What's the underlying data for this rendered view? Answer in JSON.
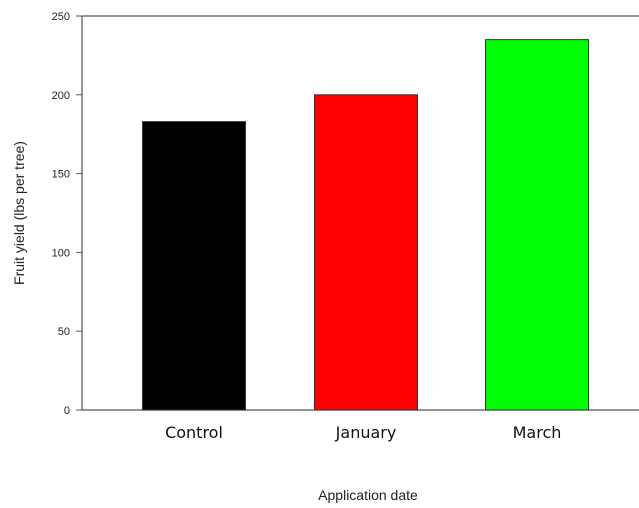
{
  "chart_data": {
    "type": "bar",
    "categories": [
      "Control",
      "January",
      "March"
    ],
    "values": [
      183,
      200,
      235
    ],
    "colors": [
      "#000000",
      "#ff0000",
      "#00ff00"
    ],
    "xlabel": "Application date",
    "ylabel": "Fruit yield (lbs per tree)",
    "ylim": [
      0,
      250
    ],
    "yticks": [
      "0",
      "50",
      "100",
      "150",
      "200",
      "250"
    ],
    "grid": false,
    "legend": "none"
  }
}
